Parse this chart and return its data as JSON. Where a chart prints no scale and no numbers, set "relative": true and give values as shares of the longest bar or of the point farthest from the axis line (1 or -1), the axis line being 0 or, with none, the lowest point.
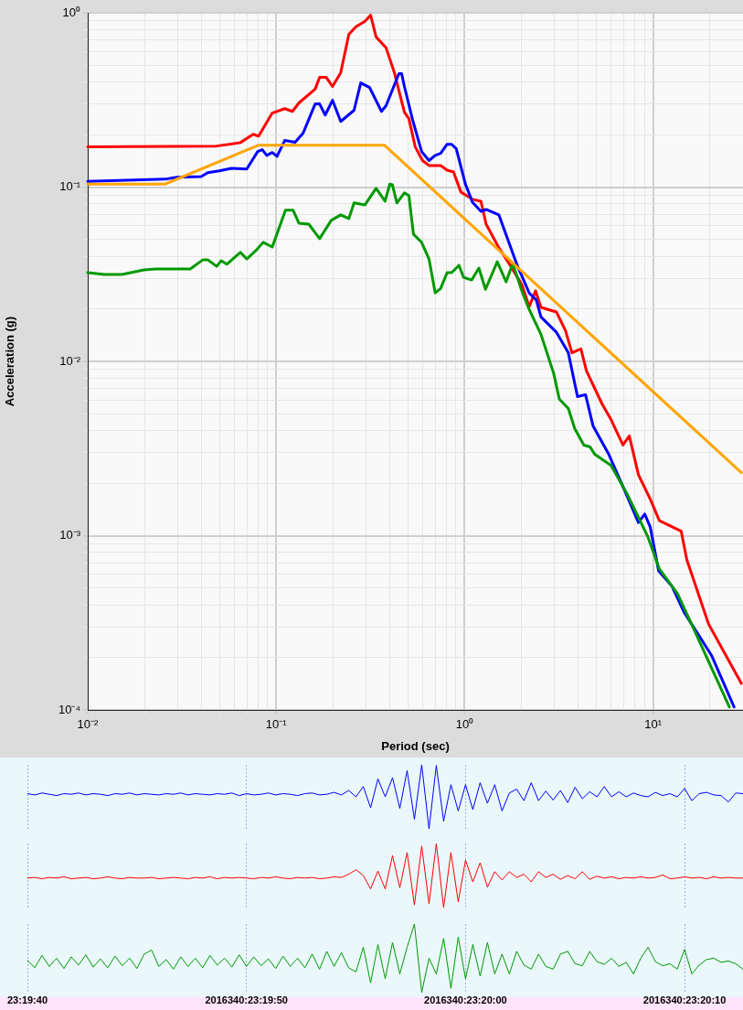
{
  "chart_data": [
    {
      "type": "line",
      "xlabel": "Period (sec)",
      "ylabel": "Acceleration (g)",
      "log": "xy",
      "grid": true,
      "marker": "none",
      "line_style": "solid",
      "xlim": [
        0.01,
        30
      ],
      "ylim": [
        0.0001,
        1
      ],
      "xticks": [
        {
          "value": 0.01,
          "label": "10⁻²"
        },
        {
          "value": 0.02,
          "label": null
        },
        {
          "value": 0.03,
          "label": null
        },
        {
          "value": 0.04,
          "label": null
        },
        {
          "value": 0.05,
          "label": null
        },
        {
          "value": 0.06,
          "label": null
        },
        {
          "value": 0.07,
          "label": null
        },
        {
          "value": 0.08,
          "label": null
        },
        {
          "value": 0.09,
          "label": null
        },
        {
          "value": 0.1,
          "label": "10⁻¹"
        },
        {
          "value": 0.2,
          "label": null
        },
        {
          "value": 0.3,
          "label": null
        },
        {
          "value": 0.4,
          "label": null
        },
        {
          "value": 0.5,
          "label": null
        },
        {
          "value": 0.6,
          "label": null
        },
        {
          "value": 0.7,
          "label": null
        },
        {
          "value": 0.8,
          "label": null
        },
        {
          "value": 0.9,
          "label": null
        },
        {
          "value": 1,
          "label": "10⁰"
        },
        {
          "value": 2,
          "label": null
        },
        {
          "value": 3,
          "label": null
        },
        {
          "value": 4,
          "label": null
        },
        {
          "value": 5,
          "label": null
        },
        {
          "value": 6,
          "label": null
        },
        {
          "value": 7,
          "label": null
        },
        {
          "value": 8,
          "label": null
        },
        {
          "value": 9,
          "label": null
        },
        {
          "value": 10,
          "label": "10¹"
        },
        {
          "value": 20,
          "label": null
        }
      ],
      "yticks": [
        {
          "value": 0.0001,
          "label": "10⁻⁴"
        },
        {
          "value": 0.0002,
          "label": null
        },
        {
          "value": 0.0003,
          "label": null
        },
        {
          "value": 0.0004,
          "label": null
        },
        {
          "value": 0.0005,
          "label": null
        },
        {
          "value": 0.0006,
          "label": null
        },
        {
          "value": 0.0007,
          "label": null
        },
        {
          "value": 0.0008,
          "label": null
        },
        {
          "value": 0.0009,
          "label": null
        },
        {
          "value": 0.001,
          "label": "10⁻³"
        },
        {
          "value": 0.002,
          "label": null
        },
        {
          "value": 0.003,
          "label": null
        },
        {
          "value": 0.004,
          "label": null
        },
        {
          "value": 0.005,
          "label": null
        },
        {
          "value": 0.006,
          "label": null
        },
        {
          "value": 0.007,
          "label": null
        },
        {
          "value": 0.008,
          "label": null
        },
        {
          "value": 0.009,
          "label": null
        },
        {
          "value": 0.01,
          "label": "10⁻²"
        },
        {
          "value": 0.02,
          "label": null
        },
        {
          "value": 0.03,
          "label": null
        },
        {
          "value": 0.04,
          "label": null
        },
        {
          "value": 0.05,
          "label": null
        },
        {
          "value": 0.06,
          "label": null
        },
        {
          "value": 0.07,
          "label": null
        },
        {
          "value": 0.08,
          "label": null
        },
        {
          "value": 0.09,
          "label": null
        },
        {
          "value": 0.1,
          "label": "10⁻¹"
        },
        {
          "value": 0.2,
          "label": null
        },
        {
          "value": 0.3,
          "label": null
        },
        {
          "value": 0.4,
          "label": null
        },
        {
          "value": 0.5,
          "label": null
        },
        {
          "value": 0.6,
          "label": null
        },
        {
          "value": 0.7,
          "label": null
        },
        {
          "value": 0.8,
          "label": null
        },
        {
          "value": 0.9,
          "label": null
        },
        {
          "value": 1,
          "label": "10⁰"
        }
      ],
      "series": [
        {
          "color": "#ffa500",
          "x": [
            0.01,
            0.0257,
            0.0807,
            0.375,
            29.4
          ],
          "values": [
            0.104,
            0.104,
            0.174,
            0.174,
            0.0023
          ]
        },
        {
          "color": "#009900",
          "x": [
            0.01,
            0.0122,
            0.0152,
            0.0199,
            0.023,
            0.035,
            0.0409,
            0.0433,
            0.0483,
            0.0511,
            0.0547,
            0.0646,
            0.0698,
            0.078,
            0.0853,
            0.0953,
            0.112,
            0.123,
            0.132,
            0.149,
            0.17,
            0.196,
            0.22,
            0.243,
            0.259,
            0.296,
            0.339,
            0.378,
            0.401,
            0.414,
            0.437,
            0.479,
            0.506,
            0.535,
            0.591,
            0.647,
            0.698,
            0.746,
            0.807,
            0.853,
            0.933,
            0.986,
            1.09,
            1.19,
            1.29,
            1.49,
            1.66,
            1.8,
            2.01,
            2.2,
            2.54,
            2.97,
            3.18,
            3.55,
            3.84,
            4.29,
            4.63,
            4.9,
            5.98,
            7.23,
            9.34,
            10.8,
            13.5,
            25.4
          ],
          "values": [
            0.0323,
            0.0315,
            0.0315,
            0.0335,
            0.0339,
            0.0339,
            0.0383,
            0.0383,
            0.0351,
            0.0378,
            0.0361,
            0.0422,
            0.0387,
            0.0432,
            0.0482,
            0.0453,
            0.0736,
            0.0736,
            0.0621,
            0.0613,
            0.0506,
            0.0644,
            0.0693,
            0.066,
            0.0811,
            0.0791,
            0.0984,
            0.083,
            0.104,
            0.103,
            0.0811,
            0.0927,
            0.0893,
            0.0537,
            0.0482,
            0.0387,
            0.0247,
            0.0262,
            0.0323,
            0.0323,
            0.0356,
            0.0304,
            0.0293,
            0.0343,
            0.0259,
            0.0373,
            0.0286,
            0.0364,
            0.0254,
            0.0199,
            0.0143,
            0.00851,
            0.00607,
            0.00537,
            0.00411,
            0.00331,
            0.00323,
            0.00293,
            0.00253,
            0.00176,
            0.000996,
            0.000644,
            0.000464,
            0.000104
          ]
        },
        {
          "color": "#0000ff",
          "x": [
            0.01,
            0.0257,
            0.0297,
            0.04,
            0.0433,
            0.0499,
            0.0578,
            0.0698,
            0.0798,
            0.0844,
            0.0891,
            0.0953,
            0.101,
            0.111,
            0.126,
            0.139,
            0.161,
            0.17,
            0.182,
            0.199,
            0.22,
            0.259,
            0.281,
            0.313,
            0.362,
            0.383,
            0.448,
            0.463,
            0.479,
            0.529,
            0.591,
            0.647,
            0.698,
            0.746,
            0.807,
            0.853,
            0.903,
            1.01,
            1.1,
            1.22,
            1.3,
            1.52,
            1.9,
            2.2,
            2.4,
            2.54,
            3.07,
            3.55,
            3.97,
            4.38,
            4.8,
            5.79,
            6.92,
            8.36,
            9.03,
            9.66,
            10.7,
            12.6,
            14.6,
            20.4,
            26.9
          ],
          "values": [
            0.108,
            0.111,
            0.114,
            0.115,
            0.121,
            0.124,
            0.128,
            0.127,
            0.16,
            0.164,
            0.152,
            0.158,
            0.15,
            0.185,
            0.181,
            0.204,
            0.3,
            0.3,
            0.259,
            0.315,
            0.238,
            0.276,
            0.396,
            0.373,
            0.272,
            0.293,
            0.448,
            0.448,
            0.378,
            0.244,
            0.16,
            0.142,
            0.152,
            0.156,
            0.176,
            0.176,
            0.166,
            0.104,
            0.082,
            0.0726,
            0.0744,
            0.0692,
            0.0356,
            0.0247,
            0.0225,
            0.018,
            0.0147,
            0.0112,
            0.00628,
            0.00644,
            0.00427,
            0.00296,
            0.00191,
            0.00119,
            0.00133,
            0.00112,
            0.000628,
            0.000512,
            0.000364,
            0.000206,
            0.000104
          ]
        },
        {
          "color": "#ff0000",
          "x": [
            0.01,
            0.0483,
            0.0646,
            0.0755,
            0.0807,
            0.0953,
            0.111,
            0.122,
            0.132,
            0.161,
            0.17,
            0.184,
            0.199,
            0.22,
            0.243,
            0.265,
            0.296,
            0.317,
            0.339,
            0.383,
            0.424,
            0.479,
            0.506,
            0.547,
            0.598,
            0.647,
            0.746,
            0.807,
            0.873,
            0.955,
            1.1,
            1.22,
            1.3,
            1.52,
            1.76,
            2.01,
            2.2,
            2.38,
            2.54,
            3.07,
            3.43,
            3.71,
            4.14,
            4.43,
            5.36,
            5.98,
            6.92,
            7.48,
            8.36,
            9.66,
            10.8,
            14.1,
            15.1,
            19.7,
            29.4
          ],
          "values": [
            0.17,
            0.172,
            0.18,
            0.201,
            0.196,
            0.266,
            0.282,
            0.272,
            0.304,
            0.365,
            0.427,
            0.427,
            0.378,
            0.453,
            0.753,
            0.831,
            0.894,
            0.97,
            0.727,
            0.629,
            0.453,
            0.269,
            0.247,
            0.17,
            0.142,
            0.133,
            0.133,
            0.125,
            0.122,
            0.0937,
            0.0851,
            0.083,
            0.0613,
            0.0448,
            0.0351,
            0.0276,
            0.0206,
            0.0254,
            0.0204,
            0.0192,
            0.015,
            0.0112,
            0.0118,
            0.00883,
            0.0057,
            0.00464,
            0.00331,
            0.00373,
            0.00224,
            0.00162,
            0.00122,
            0.00106,
            0.000728,
            0.000311,
            0.000142
          ]
        }
      ]
    },
    {
      "type": "line",
      "relative": true,
      "grid": "x",
      "tick_labels": false,
      "marker": "none",
      "categories": [
        null,
        null,
        null,
        null,
        null,
        null,
        null,
        null,
        null,
        null,
        null,
        null,
        null,
        null,
        null,
        null,
        null,
        null,
        null,
        null,
        null,
        null,
        null,
        null,
        null,
        null,
        null,
        null,
        null,
        null,
        null,
        null,
        null,
        null,
        null,
        null,
        null,
        null,
        null,
        null,
        null,
        null,
        null,
        null,
        null,
        null,
        null,
        null,
        null,
        null,
        null,
        null,
        null,
        null,
        null,
        null,
        null,
        null,
        null,
        null,
        null,
        null,
        null,
        null,
        null,
        null,
        null,
        null,
        null,
        null,
        null,
        null,
        null,
        null,
        null,
        null,
        null,
        null,
        null,
        null,
        null,
        null,
        null,
        null,
        null,
        null,
        null,
        null,
        null,
        null,
        null,
        null,
        null,
        null,
        null,
        null,
        null,
        null,
        null
      ],
      "series": [
        {
          "color": "#0000ff",
          "values": [
            0.55,
            0.53,
            0.56,
            0.54,
            0.52,
            0.55,
            0.54,
            0.56,
            0.53,
            0.55,
            0.54,
            0.52,
            0.55,
            0.54,
            0.56,
            0.53,
            0.55,
            0.54,
            0.53,
            0.55,
            0.54,
            0.56,
            0.53,
            0.55,
            0.54,
            0.53,
            0.55,
            0.54,
            0.56,
            0.52,
            0.55,
            0.53,
            0.54,
            0.56,
            0.53,
            0.55,
            0.54,
            0.52,
            0.55,
            0.56,
            0.53,
            0.54,
            0.57,
            0.53,
            0.6,
            0.5,
            0.66,
            0.33,
            0.78,
            0.5,
            0.8,
            0.32,
            0.91,
            0.15,
            1,
            0,
            0.99,
            0.12,
            0.69,
            0.28,
            0.69,
            0.3,
            0.72,
            0.4,
            0.69,
            0.28,
            0.56,
            0.62,
            0.44,
            0.72,
            0.44,
            0.59,
            0.45,
            0.6,
            0.41,
            0.65,
            0.47,
            0.58,
            0.5,
            0.66,
            0.5,
            0.58,
            0.5,
            0.56,
            0.52,
            0.5,
            0.57,
            0.52,
            0.55,
            0.5,
            0.63,
            0.44,
            0.55,
            0.57,
            0.53,
            0.52,
            0.42,
            0.56,
            0.55
          ]
        }
      ]
    },
    {
      "type": "line",
      "relative": true,
      "grid": "x",
      "tick_labels": false,
      "marker": "none",
      "categories": [
        null,
        null,
        null,
        null,
        null,
        null,
        null,
        null,
        null,
        null,
        null,
        null,
        null,
        null,
        null,
        null,
        null,
        null,
        null,
        null,
        null,
        null,
        null,
        null,
        null,
        null,
        null,
        null,
        null,
        null,
        null,
        null,
        null,
        null,
        null,
        null,
        null,
        null,
        null,
        null,
        null,
        null,
        null,
        null,
        null,
        null,
        null,
        null,
        null,
        null,
        null,
        null,
        null,
        null,
        null,
        null,
        null,
        null,
        null,
        null,
        null,
        null,
        null,
        null,
        null,
        null,
        null,
        null,
        null,
        null,
        null,
        null,
        null,
        null,
        null,
        null,
        null,
        null,
        null,
        null,
        null,
        null,
        null,
        null,
        null,
        null,
        null,
        null,
        null,
        null,
        null,
        null,
        null,
        null,
        null,
        null,
        null,
        null,
        null
      ],
      "series": [
        {
          "color": "#ff0000",
          "values": [
            0.46,
            0.47,
            0.45,
            0.47,
            0.46,
            0.48,
            0.45,
            0.46,
            0.47,
            0.45,
            0.46,
            0.48,
            0.46,
            0.45,
            0.47,
            0.46,
            0.46,
            0.47,
            0.45,
            0.46,
            0.47,
            0.46,
            0.45,
            0.47,
            0.46,
            0.48,
            0.45,
            0.47,
            0.46,
            0.47,
            0.46,
            0.45,
            0.47,
            0.46,
            0.48,
            0.46,
            0.45,
            0.47,
            0.46,
            0.47,
            0.45,
            0.46,
            0.48,
            0.47,
            0.52,
            0.59,
            0.5,
            0.29,
            0.57,
            0.29,
            0.81,
            0.31,
            0.86,
            0.04,
            0.96,
            0.06,
            1,
            0,
            0.86,
            0.09,
            0.74,
            0.4,
            0.7,
            0.32,
            0.56,
            0.43,
            0.56,
            0.47,
            0.52,
            0.4,
            0.56,
            0.47,
            0.52,
            0.44,
            0.5,
            0.45,
            0.56,
            0.44,
            0.49,
            0.46,
            0.48,
            0.45,
            0.47,
            0.46,
            0.48,
            0.46,
            0.47,
            0.51,
            0.45,
            0.46,
            0.48,
            0.46,
            0.47,
            0.45,
            0.48,
            0.46,
            0.47,
            0.46,
            0.46
          ]
        }
      ]
    },
    {
      "type": "line",
      "relative": true,
      "grid": "x",
      "tick_labels": "x",
      "marker": "none",
      "categories": [
        "23:19:40",
        null,
        null,
        null,
        null,
        null,
        null,
        null,
        null,
        null,
        null,
        null,
        null,
        null,
        null,
        null,
        null,
        null,
        null,
        null,
        null,
        null,
        null,
        null,
        null,
        null,
        null,
        null,
        null,
        null,
        "2016340:23:19:50",
        null,
        null,
        null,
        null,
        null,
        null,
        null,
        null,
        null,
        null,
        null,
        null,
        null,
        null,
        null,
        null,
        null,
        null,
        null,
        null,
        null,
        null,
        null,
        null,
        null,
        null,
        null,
        null,
        null,
        "2016340:23:20:00",
        null,
        null,
        null,
        null,
        null,
        null,
        null,
        null,
        null,
        null,
        null,
        null,
        null,
        null,
        null,
        null,
        null,
        null,
        null,
        null,
        null,
        null,
        null,
        null,
        null,
        null,
        null,
        null,
        null,
        "2016340:23:20:10",
        null,
        null,
        null,
        null,
        null,
        null,
        null,
        null
      ],
      "series": [
        {
          "color": "#009900",
          "values": [
            0.47,
            0.36,
            0.54,
            0.38,
            0.5,
            0.35,
            0.52,
            0.4,
            0.55,
            0.37,
            0.49,
            0.36,
            0.53,
            0.39,
            0.5,
            0.35,
            0.56,
            0.62,
            0.38,
            0.48,
            0.34,
            0.52,
            0.38,
            0.5,
            0.36,
            0.54,
            0.4,
            0.5,
            0.37,
            0.55,
            0.38,
            0.52,
            0.39,
            0.49,
            0.35,
            0.53,
            0.38,
            0.5,
            0.36,
            0.56,
            0.34,
            0.6,
            0.38,
            0.58,
            0.36,
            0.3,
            0.66,
            0.14,
            0.7,
            0.2,
            0.73,
            0.27,
            0.66,
            1,
            0,
            0.5,
            0.27,
            0.79,
            0.06,
            0.81,
            0.2,
            0.7,
            0.24,
            0.73,
            0.27,
            0.56,
            0.27,
            0.6,
            0.4,
            0.34,
            0.56,
            0.38,
            0.34,
            0.56,
            0.6,
            0.42,
            0.39,
            0.6,
            0.45,
            0.41,
            0.5,
            0.38,
            0.44,
            0.27,
            0.5,
            0.66,
            0.45,
            0.39,
            0.42,
            0.34,
            0.63,
            0.27,
            0.4,
            0.48,
            0.5,
            0.44,
            0.46,
            0.42,
            0.34
          ]
        }
      ]
    }
  ]
}
